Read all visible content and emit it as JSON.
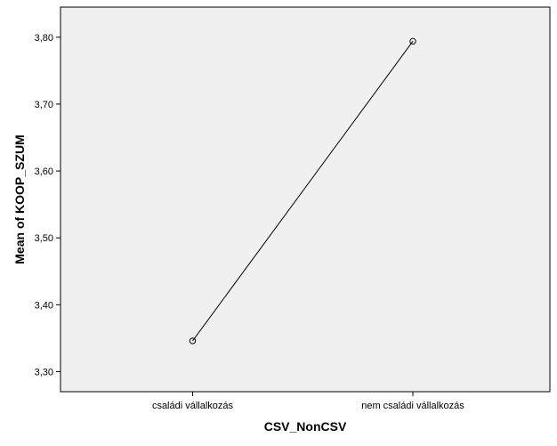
{
  "chart_data": {
    "type": "line",
    "title": "",
    "xlabel": "CSV_NonCSV",
    "ylabel": "Mean of KOOP_SZUM",
    "categories": [
      "családi vállalkozás",
      "nem családi vállalkozás"
    ],
    "series": [
      {
        "values": [
          3.346,
          3.794
        ],
        "marker": "circle-open",
        "color": "#000000"
      }
    ],
    "ylim": [
      3.27,
      3.845
    ],
    "yticks": [
      3.3,
      3.4,
      3.5,
      3.6,
      3.7,
      3.8
    ],
    "ytick_labels": [
      "3,30",
      "3,40",
      "3,50",
      "3,60",
      "3,70",
      "3,80"
    ],
    "grid": false,
    "legend": "none",
    "plot_background": "#f0f0f0",
    "line_color": "#000000"
  }
}
